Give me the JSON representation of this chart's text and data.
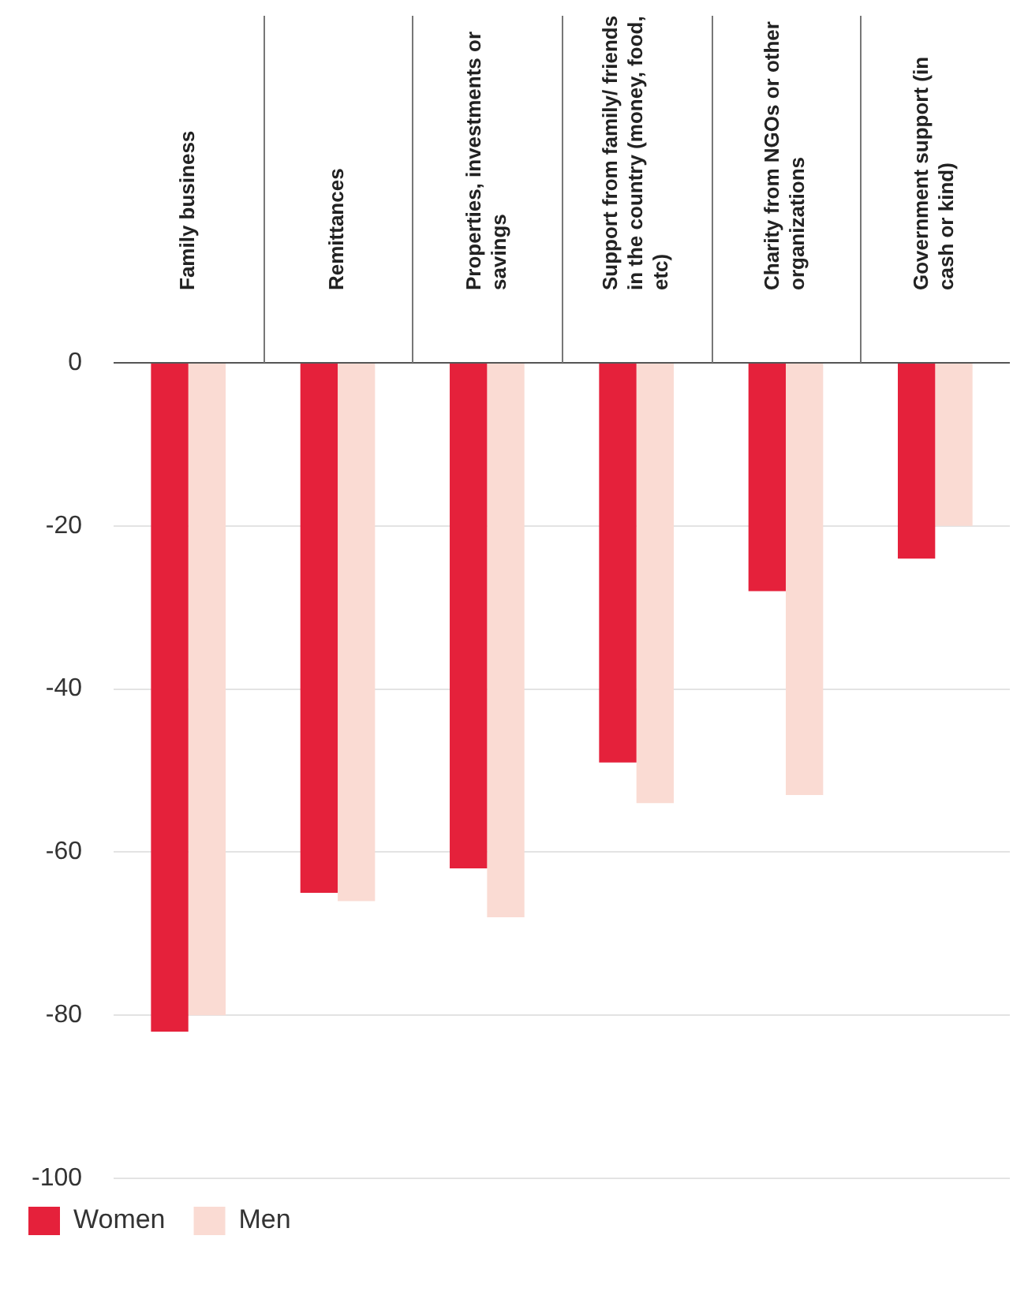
{
  "chart_data": {
    "type": "bar",
    "categories": [
      "Family business",
      "Remittances",
      "Properties, investments or savings",
      "Support from family/ friends in the country (money, food, etc)",
      "Charity from NGOs or other organizations",
      "Government support (in cash or kind)"
    ],
    "series": [
      {
        "name": "Women",
        "color": "#e5213b",
        "values": [
          -82,
          -65,
          -62,
          -49,
          -28,
          -24
        ]
      },
      {
        "name": "Men",
        "color": "#fadbd3",
        "values": [
          -80,
          -66,
          -68,
          -54,
          -53,
          -20
        ]
      }
    ],
    "ylim": [
      -100,
      0
    ],
    "yticks": [
      0,
      -20,
      -40,
      -60,
      -80,
      -100
    ],
    "grid": "y",
    "legend": "bottom left"
  }
}
